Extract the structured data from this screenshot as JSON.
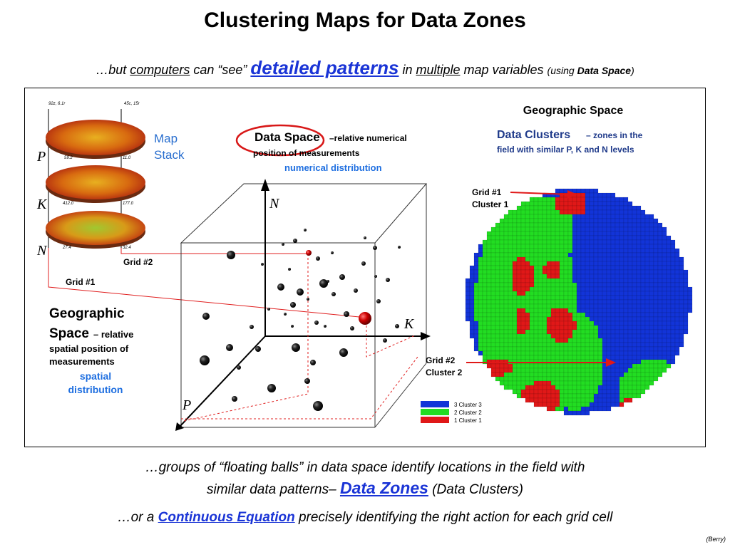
{
  "title": "Clustering Maps for Data Zones",
  "subtitle": {
    "lead": "…but ",
    "computers": "computers",
    "can_see": " can “see” ",
    "detailed_patterns": "detailed patterns",
    "in": " in ",
    "multiple": "multiple",
    "map_variables": " map variables ",
    "using": "(using ",
    "data_space": "Data Space",
    "close": ")"
  },
  "figure": {
    "geographic_space_heading": "Geographic Space",
    "map_stack_line1": "Map",
    "map_stack_line2": "Stack",
    "layer_P": "P",
    "layer_K": "K",
    "layer_N": "N",
    "stack_values": [
      "92z, 6.1r",
      "45c, 15r",
      "59.2",
      "11.0",
      "412.0",
      "177.0",
      "27.4",
      "32.4"
    ],
    "grid2_label": "Grid #2",
    "grid1_label": "Grid #1",
    "geo_space_title1": "Geographic",
    "geo_space_title2": "Space",
    "geo_space_relative": " – relative",
    "geo_space_desc1": "spatial position of",
    "geo_space_desc2": "measurements",
    "spatial_dist1": "spatial",
    "spatial_dist2": "distribution",
    "data_space_title": "Data Space",
    "data_space_desc1": " –relative numerical",
    "data_space_desc2": "position of measurements",
    "numerical_distribution": "numerical distribution",
    "axis_N": "N",
    "axis_K": "K",
    "axis_P": "P",
    "data_clusters_title": "Data Clusters",
    "data_clusters_desc1": " – zones in the",
    "data_clusters_desc2": "field with similar P, K and N levels",
    "grid1_cluster_line1": "Grid #1",
    "grid1_cluster_line2": "Cluster 1",
    "grid2_cluster_line1": "Grid #2",
    "grid2_cluster_line2": "Cluster 2",
    "legend": [
      {
        "label": "3 Cluster 3",
        "color": "#1234d8"
      },
      {
        "label": "2 Cluster 2",
        "color": "#22dd22"
      },
      {
        "label": "1 Cluster 1",
        "color": "#e01818"
      }
    ]
  },
  "caption1": {
    "line1": "…groups of “floating balls” in data space identify locations in the field with",
    "line2_a": "similar data patterns– ",
    "data_zones": "Data Zones",
    "line2_b": "  (Data Clusters)"
  },
  "caption2": {
    "a": "…or a ",
    "continuous_equation": "Continuous Equation",
    "b": " precisely identifying the right action for each grid cell"
  },
  "credit": "(Berry)"
}
